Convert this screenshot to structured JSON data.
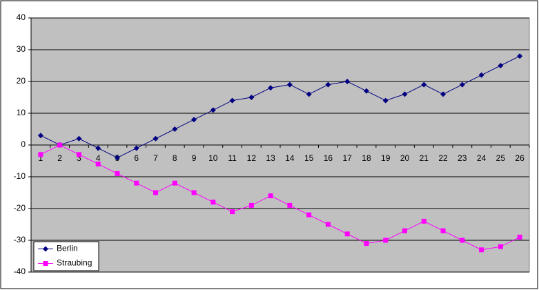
{
  "chart_data": {
    "type": "line",
    "categories": [
      "1",
      "2",
      "3",
      "4",
      "5",
      "6",
      "7",
      "8",
      "9",
      "10",
      "11",
      "12",
      "13",
      "14",
      "15",
      "16",
      "17",
      "18",
      "19",
      "20",
      "21",
      "22",
      "23",
      "24",
      "25",
      "26"
    ],
    "series": [
      {
        "name": "Berlin",
        "color": "#000080",
        "marker": "diamond",
        "values": [
          3,
          0,
          2,
          -1,
          -4,
          -1,
          2,
          5,
          8,
          11,
          14,
          15,
          18,
          19,
          16,
          19,
          20,
          17,
          14,
          16,
          19,
          16,
          19,
          22,
          25,
          28
        ]
      },
      {
        "name": "Straubing",
        "color": "#ff00ff",
        "marker": "square",
        "values": [
          -3,
          0,
          -3,
          -6,
          -9,
          -12,
          -15,
          -12,
          -15,
          -18,
          -21,
          -19,
          -16,
          -19,
          -22,
          -25,
          -28,
          -31,
          -30,
          -27,
          -24,
          -27,
          -30,
          -33,
          -32,
          -29
        ]
      }
    ],
    "ylim": [
      -40,
      40
    ],
    "yticks": [
      -40,
      -30,
      -20,
      -10,
      0,
      10,
      20,
      30,
      40
    ],
    "grid": true,
    "legend": "bottom-left"
  }
}
